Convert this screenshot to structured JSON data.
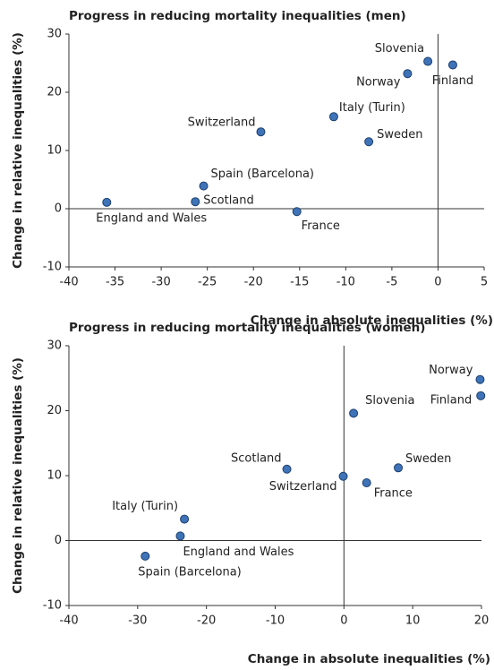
{
  "chart_data": [
    {
      "type": "scatter",
      "title": "Progress in reducing mortality inequalities (men)",
      "x_label": "Change in absolute inequalities (%)",
      "y_label": "Change in relative inequalities (%)",
      "color": "#3f73b8",
      "point_labels": [
        "England and Wales",
        "Scotland",
        "Spain (Barcelona)",
        "France",
        "Switzerland",
        "Italy (Turin)",
        "Sweden",
        "Norway",
        "Slovenia",
        "Finland"
      ],
      "x": [
        -35.9,
        -26.3,
        -25.4,
        -15.3,
        -19.2,
        -11.3,
        -7.5,
        -3.3,
        -1.1,
        1.6
      ],
      "values": [
        1.1,
        1.2,
        3.9,
        -0.5,
        13.2,
        15.8,
        11.5,
        23.2,
        25.3,
        24.7
      ],
      "xlim": [
        -40,
        5
      ],
      "xticks": [
        -40,
        -35,
        -30,
        -25,
        -20,
        -15,
        -10,
        -5,
        0,
        5
      ],
      "ylim": [
        -10,
        30
      ],
      "yticks": [
        -10,
        0,
        10,
        20,
        30
      ]
    },
    {
      "type": "scatter",
      "title": "Progress in reducing mortality inequalities (women)",
      "x_label": "Change in absolute inequalities (%)",
      "y_label": "Change in relative inequalities (%)",
      "color": "#3f73b8",
      "point_labels": [
        "Spain (Barcelona)",
        "England and Wales",
        "Italy (Turin)",
        "Scotland",
        "Switzerland",
        "Sweden",
        "France",
        "Slovenia",
        "Norway",
        "Finland"
      ],
      "x": [
        -28.9,
        -23.8,
        -23.2,
        -8.3,
        -0.1,
        7.9,
        3.3,
        1.4,
        19.8,
        19.9
      ],
      "values": [
        -2.4,
        0.7,
        3.3,
        11.0,
        9.9,
        11.2,
        8.9,
        19.6,
        24.8,
        22.3
      ],
      "xlim": [
        -40,
        20
      ],
      "xticks": [
        -40,
        -30,
        -20,
        -10,
        0,
        10,
        20
      ],
      "ylim": [
        -10,
        30
      ],
      "yticks": [
        -10,
        0,
        10,
        20,
        30
      ]
    }
  ]
}
